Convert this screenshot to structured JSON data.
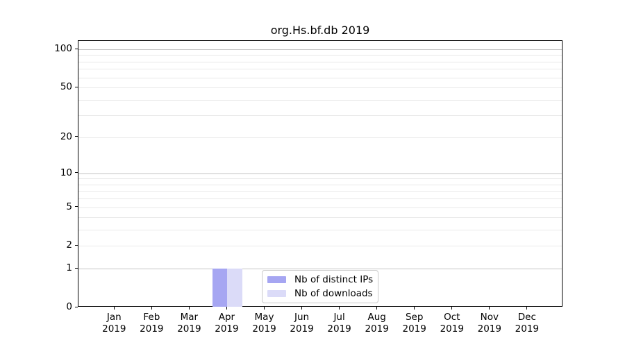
{
  "chart_data": {
    "type": "bar",
    "title": "org.Hs.bf.db 2019",
    "categories": [
      "Jan",
      "Feb",
      "Mar",
      "Apr",
      "May",
      "Jun",
      "Jul",
      "Aug",
      "Sep",
      "Oct",
      "Nov",
      "Dec"
    ],
    "category_year": "2019",
    "series": [
      {
        "name": "Nb of distinct IPs",
        "color": "#a6a6f2",
        "values": [
          0,
          0,
          0,
          1,
          0,
          0,
          0,
          0,
          0,
          0,
          0,
          0
        ]
      },
      {
        "name": "Nb of downloads",
        "color": "#dbdbf8",
        "values": [
          0,
          0,
          0,
          1,
          0,
          0,
          0,
          0,
          0,
          0,
          0,
          0
        ]
      }
    ],
    "xlabel": "",
    "ylabel": "",
    "yscale": "log1p",
    "ylim": [
      0,
      101
    ],
    "y_labeled_ticks": [
      0,
      1,
      2,
      5,
      10,
      20,
      50,
      100
    ],
    "y_major_gridlines": [
      1,
      10,
      100
    ],
    "y_minor_gridlines": [
      2,
      3,
      4,
      5,
      6,
      7,
      8,
      9,
      20,
      30,
      40,
      50,
      60,
      70,
      80,
      90
    ],
    "grid": true,
    "legend_position": "lower center"
  }
}
